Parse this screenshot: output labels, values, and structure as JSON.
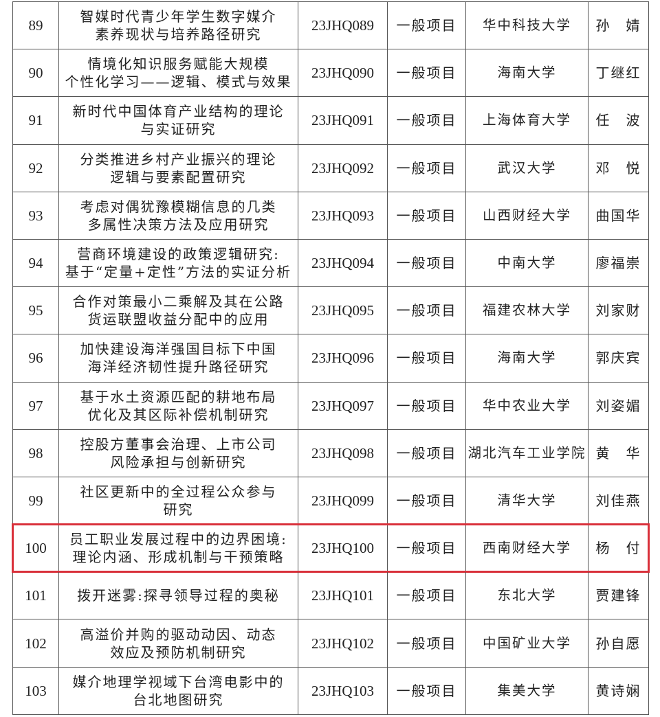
{
  "highlight_color": "#d9303a",
  "highlighted_row_no": "100",
  "rows": [
    {
      "no": "89",
      "title": "智媒时代青少年学生数字媒介\n素养现状与培养路径研究",
      "code": "23JHQ089",
      "type": "一般项目",
      "unit": "华中科技大学",
      "name": "孙　婧"
    },
    {
      "no": "90",
      "title": "情境化知识服务赋能大规模\n个性化学习——逻辑、模式与效果",
      "code": "23JHQ090",
      "type": "一般项目",
      "unit": "海南大学",
      "name": "丁继红"
    },
    {
      "no": "91",
      "title": "新时代中国体育产业结构的理论\n与实证研究",
      "code": "23JHQ091",
      "type": "一般项目",
      "unit": "上海体育大学",
      "name": "任　波"
    },
    {
      "no": "92",
      "title": "分类推进乡村产业振兴的理论\n逻辑与要素配置研究",
      "code": "23JHQ092",
      "type": "一般项目",
      "unit": "武汉大学",
      "name": "邓　悦"
    },
    {
      "no": "93",
      "title": "考虑对偶犹豫模糊信息的几类\n多属性决策方法及应用研究",
      "code": "23JHQ093",
      "type": "一般项目",
      "unit": "山西财经大学",
      "name": "曲国华"
    },
    {
      "no": "94",
      "title": "营商环境建设的政策逻辑研究:\n基于“定量+定性”方法的实证分析",
      "code": "23JHQ094",
      "type": "一般项目",
      "unit": "中南大学",
      "name": "廖福崇"
    },
    {
      "no": "95",
      "title": "合作对策最小二乘解及其在公路\n货运联盟收益分配中的应用",
      "code": "23JHQ095",
      "type": "一般项目",
      "unit": "福建农林大学",
      "name": "刘家财"
    },
    {
      "no": "96",
      "title": "加快建设海洋强国目标下中国\n海洋经济韧性提升路径研究",
      "code": "23JHQ096",
      "type": "一般项目",
      "unit": "海南大学",
      "name": "郭庆宾"
    },
    {
      "no": "97",
      "title": "基于水土资源匹配的耕地布局\n优化及其区际补偿机制研究",
      "code": "23JHQ097",
      "type": "一般项目",
      "unit": "华中农业大学",
      "name": "刘姿媚"
    },
    {
      "no": "98",
      "title": "控股方董事会治理、上市公司\n风险承担与创新研究",
      "code": "23JHQ098",
      "type": "一般项目",
      "unit": "湖北汽车工业学院",
      "name": "黄　华"
    },
    {
      "no": "99",
      "title": "社区更新中的全过程公众参与\n研究",
      "code": "23JHQ099",
      "type": "一般项目",
      "unit": "清华大学",
      "name": "刘佳燕"
    },
    {
      "no": "100",
      "title": "员工职业发展过程中的边界困境:\n理论内涵、形成机制与干预策略",
      "code": "23JHQ100",
      "type": "一般项目",
      "unit": "西南财经大学",
      "name": "杨　付"
    },
    {
      "no": "101",
      "title": "拨开迷雾:探寻领导过程的奥秘",
      "code": "23JHQ101",
      "type": "一般项目",
      "unit": "东北大学",
      "name": "贾建锋"
    },
    {
      "no": "102",
      "title": "高溢价并购的驱动动因、动态\n效应及预防机制研究",
      "code": "23JHQ102",
      "type": "一般项目",
      "unit": "中国矿业大学",
      "name": "孙自愿"
    },
    {
      "no": "103",
      "title": "媒介地理学视域下台湾电影中的\n台北地图研究",
      "code": "23JHQ103",
      "type": "一般项目",
      "unit": "集美大学",
      "name": "黄诗娴"
    }
  ]
}
